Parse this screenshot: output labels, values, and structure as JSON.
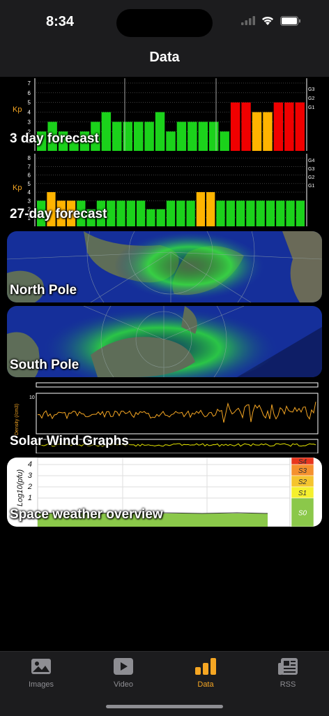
{
  "status": {
    "time": "8:34"
  },
  "nav": {
    "title": "Data"
  },
  "cards": {
    "kp3": {
      "label": "3 day forecast",
      "axis_label": "Kp",
      "y_ticks": [
        "1",
        "2",
        "3",
        "4",
        "5",
        "6",
        "7"
      ],
      "g_labels": [
        "G3",
        "G2",
        "G1"
      ],
      "values": [
        2,
        3,
        2,
        1,
        2,
        3,
        4,
        3,
        3,
        3,
        3,
        4,
        2,
        3,
        3,
        3,
        3,
        2,
        5,
        5,
        4,
        4,
        5,
        5,
        5
      ],
      "colors": {
        "low": "#1bd21b",
        "mid": "#ffb400",
        "high": "#f00000"
      }
    },
    "kp27": {
      "label": "27-day forecast",
      "axis_label": "Kp",
      "y_ticks": [
        "1",
        "2",
        "3",
        "4",
        "5",
        "6",
        "7",
        "8"
      ],
      "g_labels": [
        "G4",
        "G3",
        "G2",
        "G1"
      ],
      "values": [
        3,
        4,
        3,
        3,
        3,
        2,
        3,
        3,
        3,
        3,
        3,
        2,
        2,
        3,
        3,
        3,
        4,
        4,
        3,
        3,
        3,
        3,
        3,
        3,
        3,
        3,
        3
      ]
    },
    "north": {
      "label": "North Pole"
    },
    "south": {
      "label": "South Pole"
    },
    "solarwind": {
      "label": "Solar Wind Graphs",
      "axis_label": "Density (/cm3)",
      "top_tick": "10"
    },
    "overview": {
      "label": "Space weather overview",
      "axis_label": "Log10(pfu)",
      "y_ticks": [
        "1",
        "2",
        "3",
        "4"
      ],
      "scale": [
        {
          "name": "S4",
          "color": "#e8361e"
        },
        {
          "name": "S3",
          "color": "#f5902e"
        },
        {
          "name": "S2",
          "color": "#f5c42e"
        },
        {
          "name": "S1",
          "color": "#f5f02e"
        },
        {
          "name": "S0",
          "color": "#8bc84a"
        }
      ]
    }
  },
  "tabs": [
    {
      "label": "Images",
      "icon": "photo-icon",
      "active": false
    },
    {
      "label": "Video",
      "icon": "play-icon",
      "active": false
    },
    {
      "label": "Data",
      "icon": "chart-icon",
      "active": true
    },
    {
      "label": "RSS",
      "icon": "newspaper-icon",
      "active": false
    }
  ],
  "colors": {
    "accent": "#f5a623",
    "inactive": "#8e8e93"
  }
}
